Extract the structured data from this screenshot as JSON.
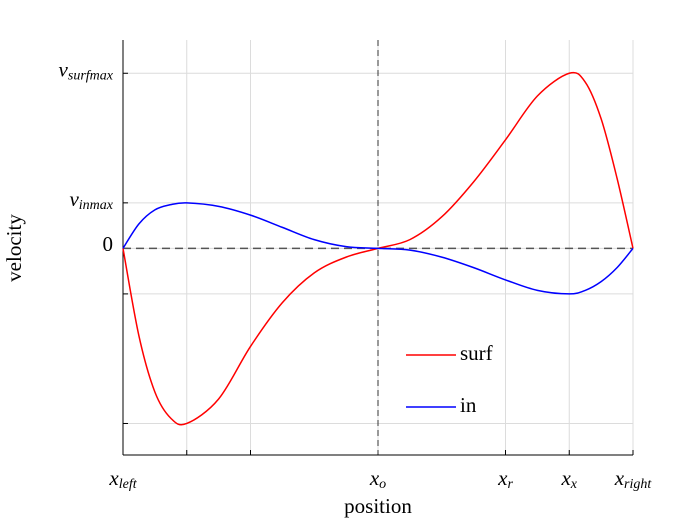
{
  "chart_data": {
    "type": "line",
    "x_label": "position",
    "y_label": "velocity",
    "x": [
      0,
      0.25,
      0.5,
      0.75,
      1,
      1.5,
      2,
      2.5,
      3,
      3.5,
      4,
      4.5,
      5,
      5.5,
      6,
      6.5,
      7,
      7.25,
      7.5,
      7.75,
      8
    ],
    "series": [
      {
        "name": "surf",
        "color": "#ff0000",
        "values": [
          0,
          -0.5,
          -0.82,
          -0.97,
          -1,
          -0.86,
          -0.56,
          -0.31,
          -0.14,
          -0.05,
          0,
          0.05,
          0.18,
          0.38,
          0.62,
          0.87,
          1,
          0.95,
          0.74,
          0.4,
          0
        ]
      },
      {
        "name": "in",
        "color": "#0000ff",
        "values": [
          0,
          0.14,
          0.22,
          0.25,
          0.26,
          0.24,
          0.19,
          0.12,
          0.05,
          0.01,
          0,
          -0.01,
          -0.05,
          -0.11,
          -0.18,
          -0.24,
          -0.26,
          -0.24,
          -0.19,
          -0.11,
          0
        ]
      }
    ],
    "xlim": [
      0,
      8
    ],
    "ylim": [
      -1.18,
      1.19
    ],
    "xticks": [
      {
        "value": 0,
        "label": "xleft"
      },
      {
        "value": 1,
        "label": null
      },
      {
        "value": 2,
        "label": null
      },
      {
        "value": 4,
        "label": "xo"
      },
      {
        "value": 6,
        "label": "xr"
      },
      {
        "value": 7,
        "label": "xx"
      },
      {
        "value": 8,
        "label": "xright"
      }
    ],
    "yticks": [
      {
        "value": -1,
        "label": null
      },
      {
        "value": -0.26,
        "label": null
      },
      0,
      {
        "value": 0.26,
        "label": "vinmax"
      },
      {
        "value": 1,
        "label": "vsurfmax"
      }
    ],
    "grid": true,
    "legend": "lower center"
  }
}
